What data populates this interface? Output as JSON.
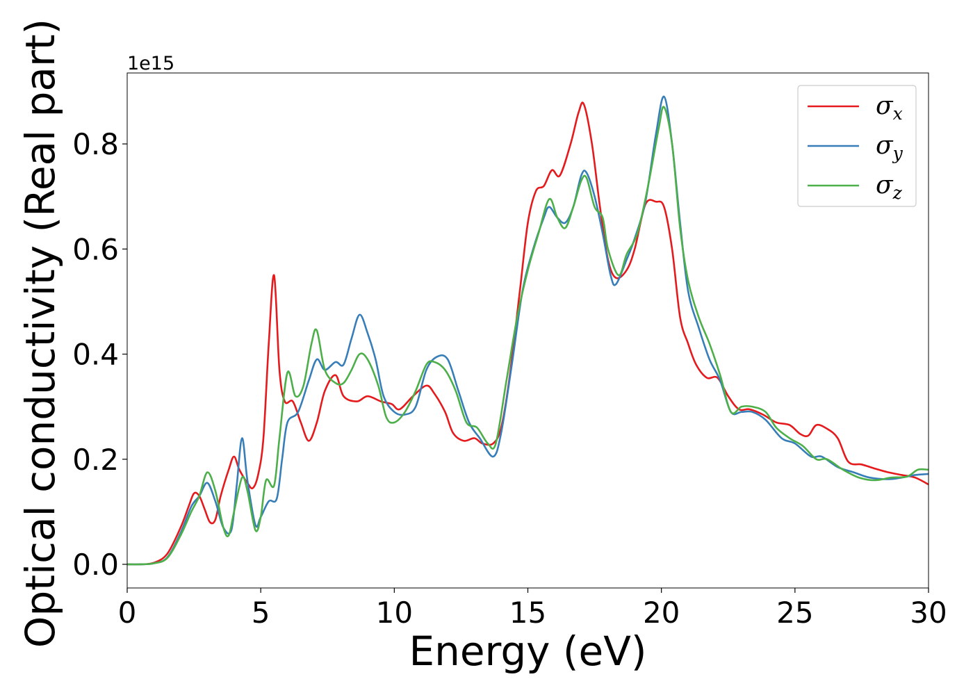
{
  "chart_data": {
    "type": "line",
    "title": "",
    "xlabel": "Energy (eV)",
    "ylabel": "Optical conductivity (Real part)",
    "offset_label": "1e15",
    "xlim": [
      0,
      30
    ],
    "ylim": [
      -0.045,
      0.935
    ],
    "x_ticks": [
      0,
      5,
      10,
      15,
      20,
      25,
      30
    ],
    "y_ticks": [
      0.0,
      0.2,
      0.4,
      0.6,
      0.8
    ],
    "x_tick_labels": [
      "0",
      "5",
      "10",
      "15",
      "20",
      "25",
      "30"
    ],
    "y_tick_labels": [
      "0.0",
      "0.2",
      "0.4",
      "0.6",
      "0.8"
    ],
    "grid": false,
    "legend_position": "top-right",
    "series": [
      {
        "name": "σx",
        "base": "σ",
        "sub": "x",
        "color": "#e41a1c",
        "points": [
          [
            0,
            0
          ],
          [
            0.5,
            0
          ],
          [
            1,
            0.003
          ],
          [
            1.5,
            0.02
          ],
          [
            2,
            0.07
          ],
          [
            2.3,
            0.11
          ],
          [
            2.5,
            0.135
          ],
          [
            2.7,
            0.13
          ],
          [
            2.9,
            0.105
          ],
          [
            3.1,
            0.08
          ],
          [
            3.3,
            0.085
          ],
          [
            3.5,
            0.13
          ],
          [
            3.8,
            0.18
          ],
          [
            4,
            0.205
          ],
          [
            4.2,
            0.18
          ],
          [
            4.5,
            0.155
          ],
          [
            4.7,
            0.145
          ],
          [
            4.9,
            0.17
          ],
          [
            5.1,
            0.24
          ],
          [
            5.3,
            0.42
          ],
          [
            5.5,
            0.55
          ],
          [
            5.7,
            0.37
          ],
          [
            5.9,
            0.31
          ],
          [
            6.2,
            0.31
          ],
          [
            6.5,
            0.27
          ],
          [
            6.8,
            0.235
          ],
          [
            7.1,
            0.27
          ],
          [
            7.4,
            0.33
          ],
          [
            7.8,
            0.36
          ],
          [
            8.1,
            0.32
          ],
          [
            8.6,
            0.31
          ],
          [
            9,
            0.32
          ],
          [
            9.5,
            0.31
          ],
          [
            9.9,
            0.305
          ],
          [
            10.2,
            0.295
          ],
          [
            10.7,
            0.32
          ],
          [
            11.2,
            0.34
          ],
          [
            11.5,
            0.325
          ],
          [
            11.9,
            0.29
          ],
          [
            12.2,
            0.25
          ],
          [
            12.6,
            0.235
          ],
          [
            13,
            0.24
          ],
          [
            13.3,
            0.23
          ],
          [
            13.7,
            0.23
          ],
          [
            14,
            0.26
          ],
          [
            14.3,
            0.35
          ],
          [
            14.7,
            0.52
          ],
          [
            15,
            0.65
          ],
          [
            15.3,
            0.71
          ],
          [
            15.6,
            0.72
          ],
          [
            15.9,
            0.75
          ],
          [
            16.2,
            0.74
          ],
          [
            16.6,
            0.8
          ],
          [
            16.9,
            0.86
          ],
          [
            17.1,
            0.875
          ],
          [
            17.4,
            0.8
          ],
          [
            17.7,
            0.68
          ],
          [
            18,
            0.58
          ],
          [
            18.3,
            0.545
          ],
          [
            18.7,
            0.56
          ],
          [
            19,
            0.6
          ],
          [
            19.4,
            0.685
          ],
          [
            19.8,
            0.69
          ],
          [
            20.1,
            0.68
          ],
          [
            20.4,
            0.6
          ],
          [
            20.7,
            0.47
          ],
          [
            21,
            0.42
          ],
          [
            21.3,
            0.38
          ],
          [
            21.7,
            0.355
          ],
          [
            22.1,
            0.355
          ],
          [
            22.5,
            0.32
          ],
          [
            22.9,
            0.295
          ],
          [
            23.3,
            0.295
          ],
          [
            23.8,
            0.285
          ],
          [
            24.3,
            0.27
          ],
          [
            24.8,
            0.265
          ],
          [
            25.2,
            0.248
          ],
          [
            25.5,
            0.245
          ],
          [
            25.8,
            0.265
          ],
          [
            26.2,
            0.258
          ],
          [
            26.6,
            0.24
          ],
          [
            27,
            0.195
          ],
          [
            27.5,
            0.19
          ],
          [
            28,
            0.182
          ],
          [
            28.5,
            0.175
          ],
          [
            29,
            0.17
          ],
          [
            29.5,
            0.165
          ],
          [
            30,
            0.152
          ]
        ]
      },
      {
        "name": "σy",
        "base": "σ",
        "sub": "y",
        "color": "#377eb8",
        "points": [
          [
            0,
            0
          ],
          [
            0.5,
            0
          ],
          [
            1,
            0.002
          ],
          [
            1.5,
            0.013
          ],
          [
            2,
            0.06
          ],
          [
            2.4,
            0.11
          ],
          [
            2.7,
            0.13
          ],
          [
            3,
            0.155
          ],
          [
            3.3,
            0.12
          ],
          [
            3.6,
            0.07
          ],
          [
            3.9,
            0.065
          ],
          [
            4.1,
            0.15
          ],
          [
            4.3,
            0.24
          ],
          [
            4.5,
            0.16
          ],
          [
            4.8,
            0.075
          ],
          [
            5,
            0.09
          ],
          [
            5.3,
            0.12
          ],
          [
            5.6,
            0.125
          ],
          [
            5.8,
            0.2
          ],
          [
            6,
            0.27
          ],
          [
            6.4,
            0.29
          ],
          [
            6.8,
            0.35
          ],
          [
            7.1,
            0.39
          ],
          [
            7.4,
            0.37
          ],
          [
            7.8,
            0.385
          ],
          [
            8.1,
            0.38
          ],
          [
            8.4,
            0.43
          ],
          [
            8.7,
            0.475
          ],
          [
            9,
            0.44
          ],
          [
            9.3,
            0.39
          ],
          [
            9.6,
            0.32
          ],
          [
            10,
            0.29
          ],
          [
            10.4,
            0.285
          ],
          [
            10.8,
            0.3
          ],
          [
            11.2,
            0.37
          ],
          [
            11.6,
            0.395
          ],
          [
            12,
            0.39
          ],
          [
            12.4,
            0.33
          ],
          [
            12.8,
            0.27
          ],
          [
            13.2,
            0.24
          ],
          [
            13.7,
            0.205
          ],
          [
            14,
            0.25
          ],
          [
            14.4,
            0.38
          ],
          [
            14.8,
            0.52
          ],
          [
            15.2,
            0.6
          ],
          [
            15.6,
            0.66
          ],
          [
            15.8,
            0.68
          ],
          [
            16.1,
            0.66
          ],
          [
            16.4,
            0.65
          ],
          [
            16.7,
            0.68
          ],
          [
            17,
            0.74
          ],
          [
            17.2,
            0.745
          ],
          [
            17.5,
            0.7
          ],
          [
            17.8,
            0.63
          ],
          [
            18.1,
            0.55
          ],
          [
            18.3,
            0.533
          ],
          [
            18.7,
            0.58
          ],
          [
            19,
            0.62
          ],
          [
            19.4,
            0.69
          ],
          [
            19.8,
            0.82
          ],
          [
            20.1,
            0.89
          ],
          [
            20.4,
            0.8
          ],
          [
            20.7,
            0.65
          ],
          [
            21,
            0.52
          ],
          [
            21.4,
            0.45
          ],
          [
            21.8,
            0.39
          ],
          [
            22.2,
            0.35
          ],
          [
            22.6,
            0.29
          ],
          [
            23,
            0.29
          ],
          [
            23.4,
            0.29
          ],
          [
            23.9,
            0.275
          ],
          [
            24.5,
            0.24
          ],
          [
            25,
            0.23
          ],
          [
            25.6,
            0.205
          ],
          [
            26,
            0.205
          ],
          [
            26.6,
            0.185
          ],
          [
            27.2,
            0.175
          ],
          [
            27.8,
            0.165
          ],
          [
            28.5,
            0.162
          ],
          [
            29,
            0.165
          ],
          [
            29.5,
            0.17
          ],
          [
            30,
            0.172
          ]
        ]
      },
      {
        "name": "σz",
        "base": "σ",
        "sub": "z",
        "color": "#4daf4a",
        "points": [
          [
            0,
            0
          ],
          [
            0.5,
            0
          ],
          [
            1,
            0.002
          ],
          [
            1.5,
            0.012
          ],
          [
            2,
            0.055
          ],
          [
            2.4,
            0.1
          ],
          [
            2.7,
            0.13
          ],
          [
            3,
            0.175
          ],
          [
            3.3,
            0.14
          ],
          [
            3.6,
            0.07
          ],
          [
            3.8,
            0.055
          ],
          [
            4,
            0.1
          ],
          [
            4.3,
            0.165
          ],
          [
            4.5,
            0.14
          ],
          [
            4.8,
            0.065
          ],
          [
            5,
            0.09
          ],
          [
            5.2,
            0.16
          ],
          [
            5.5,
            0.15
          ],
          [
            5.7,
            0.24
          ],
          [
            6,
            0.365
          ],
          [
            6.3,
            0.32
          ],
          [
            6.6,
            0.34
          ],
          [
            6.9,
            0.42
          ],
          [
            7.1,
            0.445
          ],
          [
            7.4,
            0.37
          ],
          [
            7.8,
            0.345
          ],
          [
            8.1,
            0.345
          ],
          [
            8.4,
            0.37
          ],
          [
            8.7,
            0.4
          ],
          [
            9,
            0.39
          ],
          [
            9.4,
            0.34
          ],
          [
            9.7,
            0.28
          ],
          [
            10,
            0.27
          ],
          [
            10.4,
            0.29
          ],
          [
            10.8,
            0.33
          ],
          [
            11.2,
            0.38
          ],
          [
            11.5,
            0.385
          ],
          [
            11.9,
            0.37
          ],
          [
            12.3,
            0.33
          ],
          [
            12.7,
            0.27
          ],
          [
            13.1,
            0.26
          ],
          [
            13.5,
            0.23
          ],
          [
            13.8,
            0.23
          ],
          [
            14.2,
            0.35
          ],
          [
            14.6,
            0.47
          ],
          [
            15,
            0.56
          ],
          [
            15.4,
            0.63
          ],
          [
            15.8,
            0.695
          ],
          [
            16.1,
            0.66
          ],
          [
            16.4,
            0.64
          ],
          [
            16.7,
            0.68
          ],
          [
            17,
            0.73
          ],
          [
            17.2,
            0.735
          ],
          [
            17.5,
            0.68
          ],
          [
            17.8,
            0.66
          ],
          [
            18,
            0.6
          ],
          [
            18.4,
            0.55
          ],
          [
            18.7,
            0.59
          ],
          [
            19.1,
            0.63
          ],
          [
            19.5,
            0.72
          ],
          [
            19.9,
            0.83
          ],
          [
            20.1,
            0.87
          ],
          [
            20.4,
            0.8
          ],
          [
            20.7,
            0.64
          ],
          [
            21,
            0.54
          ],
          [
            21.4,
            0.47
          ],
          [
            21.8,
            0.42
          ],
          [
            22.2,
            0.36
          ],
          [
            22.6,
            0.29
          ],
          [
            23,
            0.3
          ],
          [
            23.4,
            0.3
          ],
          [
            23.9,
            0.29
          ],
          [
            24.3,
            0.26
          ],
          [
            24.8,
            0.24
          ],
          [
            25.3,
            0.225
          ],
          [
            25.8,
            0.2
          ],
          [
            26.2,
            0.2
          ],
          [
            26.8,
            0.18
          ],
          [
            27.4,
            0.165
          ],
          [
            28,
            0.16
          ],
          [
            28.6,
            0.165
          ],
          [
            29.2,
            0.167
          ],
          [
            29.6,
            0.18
          ],
          [
            30,
            0.18
          ]
        ]
      }
    ]
  }
}
